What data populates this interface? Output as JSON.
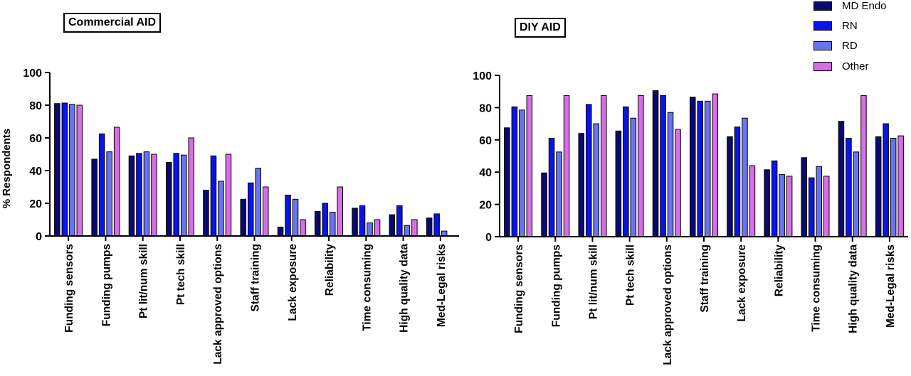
{
  "chart_data": [
    {
      "type": "bar",
      "title": "Commercial AID",
      "ylabel": "% Respondents",
      "xlabel": "",
      "ylim": [
        0,
        100
      ],
      "yticks": [
        0,
        20,
        40,
        60,
        80,
        100
      ],
      "categories": [
        "Funding sensors",
        "Funding pumps",
        "Pt lit/num skill",
        "Pt tech skill",
        "Lack approved options",
        "Staff training",
        "Lack exposure",
        "Reliability",
        "Time consuming",
        "High quality data",
        "Med-Legal risks"
      ],
      "series": [
        {
          "name": "MD Endo",
          "color": "#0a0a6e",
          "values": [
            81,
            47,
            49,
            45,
            28,
            22.5,
            5.5,
            15,
            17,
            13,
            11
          ]
        },
        {
          "name": "RN",
          "color": "#0a14e6",
          "values": [
            81.3,
            62.5,
            50.5,
            50.5,
            49,
            32.5,
            25,
            20,
            18.5,
            18.5,
            13.5
          ]
        },
        {
          "name": "RD",
          "color": "#6a74ee",
          "values": [
            80.5,
            51.5,
            51.5,
            49.5,
            33.5,
            41.5,
            22.5,
            14.5,
            8,
            6.5,
            3
          ]
        },
        {
          "name": "Other",
          "color": "#d86ee6",
          "values": [
            80,
            66.5,
            50,
            60,
            50,
            30,
            10,
            30,
            10,
            10,
            0
          ]
        }
      ],
      "grid": false
    },
    {
      "type": "bar",
      "title": "DIY AID",
      "ylabel": "",
      "xlabel": "",
      "ylim": [
        0,
        100
      ],
      "yticks": [
        0,
        20,
        40,
        60,
        80,
        100
      ],
      "categories": [
        "Funding sensors",
        "Funding pumps",
        "Pt lit/num skill",
        "Pt tech skill",
        "Lack approved options",
        "Staff training",
        "Lack exposure",
        "Reliability",
        "Time consuming",
        "High quality data",
        "Med-Legal risks"
      ],
      "series": [
        {
          "name": "MD Endo",
          "color": "#0a0a6e",
          "values": [
            67.5,
            39.5,
            64,
            65.5,
            90.5,
            86.5,
            62,
            41.5,
            49,
            71.5,
            62
          ]
        },
        {
          "name": "RN",
          "color": "#0a14e6",
          "values": [
            80.5,
            61,
            82,
            80.5,
            87.5,
            84,
            68,
            47,
            36.5,
            61,
            70
          ]
        },
        {
          "name": "RD",
          "color": "#6a74ee",
          "values": [
            78.5,
            52.5,
            70,
            73.5,
            77,
            84,
            73.5,
            38.5,
            43.5,
            52.5,
            61
          ]
        },
        {
          "name": "Other",
          "color": "#d86ee6",
          "values": [
            87.5,
            87.5,
            87.5,
            87.5,
            66.5,
            88.5,
            44,
            37.5,
            37.5,
            87.5,
            62.5
          ]
        }
      ],
      "grid": false
    }
  ],
  "legend": {
    "placement": "top-right",
    "items": [
      {
        "label": "MD Endo",
        "color": "#0a0a6e"
      },
      {
        "label": "RN",
        "color": "#0a14e6"
      },
      {
        "label": "RD",
        "color": "#6a74ee"
      },
      {
        "label": "Other",
        "color": "#d86ee6"
      }
    ]
  }
}
